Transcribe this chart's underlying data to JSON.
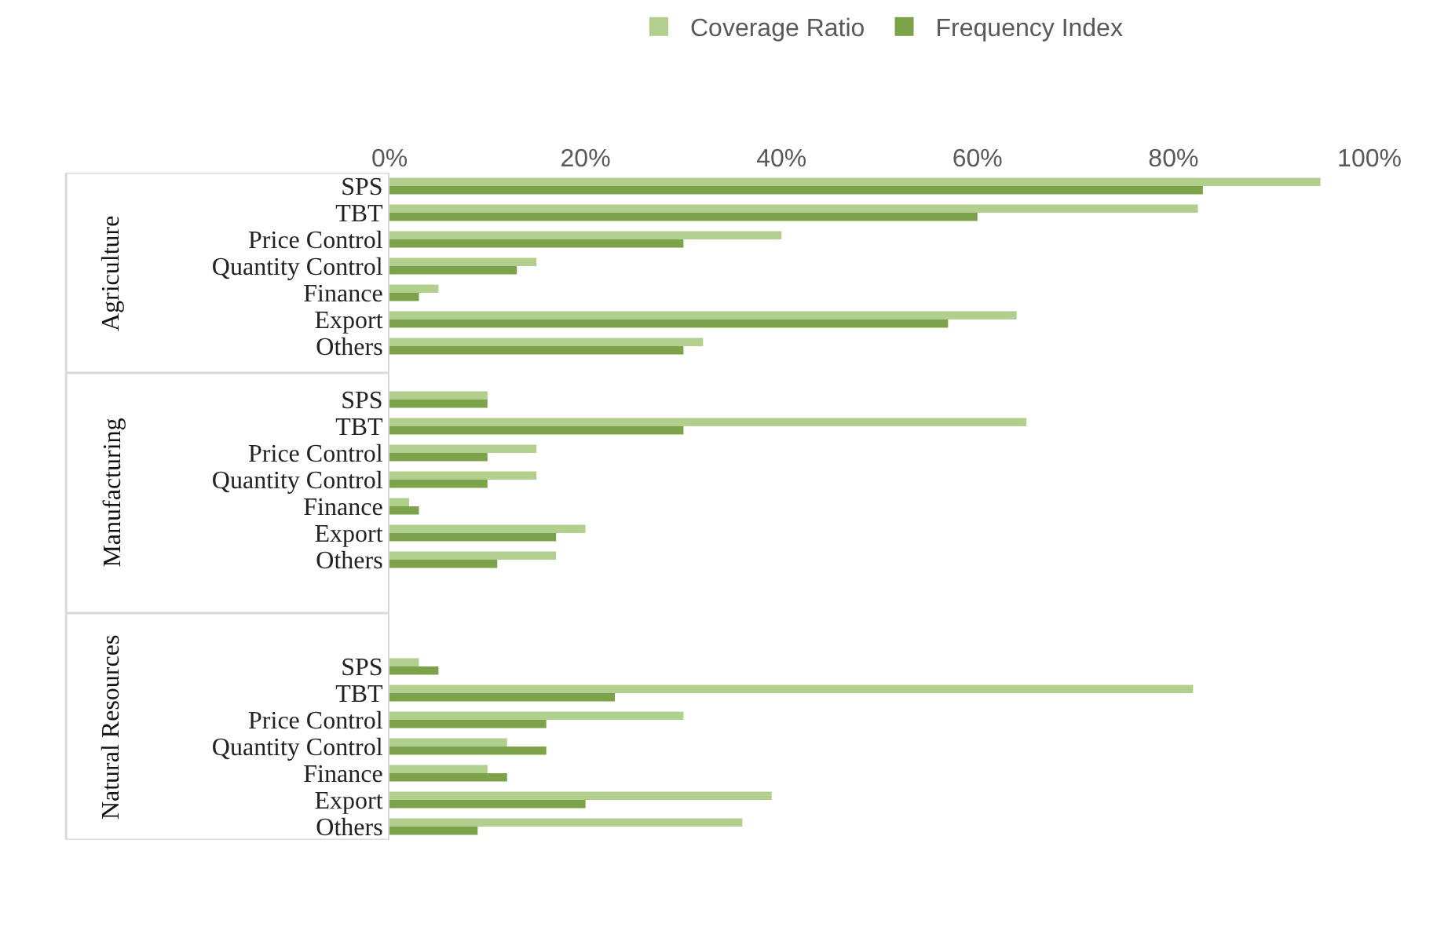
{
  "chart_data": {
    "type": "bar",
    "orientation": "horizontal",
    "categories": [
      "SPS",
      "TBT",
      "Price Control",
      "Quantity Control",
      "Finance",
      "Export",
      "Others",
      null,
      "SPS",
      "TBT",
      "Price Control",
      "Quantity Control",
      "Finance",
      "Export",
      "Others",
      null,
      null,
      null,
      "SPS",
      "TBT",
      "Price Control",
      "Quantity Control",
      "Finance",
      "Export",
      "Others"
    ],
    "series": [
      {
        "name": "Coverage Ratio",
        "color": "#b3cf8d",
        "values": [
          95,
          82.5,
          40,
          15,
          5,
          64,
          32,
          null,
          10,
          65,
          15,
          15,
          2,
          20,
          17,
          null,
          null,
          null,
          3,
          82,
          30,
          12,
          10,
          39,
          36
        ]
      },
      {
        "name": "Frequency Index",
        "color": "#7ca34a",
        "values": [
          83,
          60,
          30,
          13,
          3,
          57,
          30,
          null,
          10,
          30,
          10,
          10,
          3,
          17,
          11,
          null,
          null,
          null,
          5,
          23,
          16,
          16,
          12,
          20,
          9
        ]
      }
    ],
    "annotations": [
      "Agriculture",
      "Manufacturing",
      "Natural Resources"
    ],
    "xlim": [
      0,
      100
    ],
    "xticks": [
      {
        "value": 0,
        "label": "0%"
      },
      {
        "value": 20,
        "label": "20%"
      },
      {
        "value": 40,
        "label": "40%"
      },
      {
        "value": 60,
        "label": "60%"
      },
      {
        "value": 80,
        "label": "80%"
      },
      {
        "value": 100,
        "label": "100%"
      }
    ],
    "grid": false,
    "legend": "top"
  }
}
